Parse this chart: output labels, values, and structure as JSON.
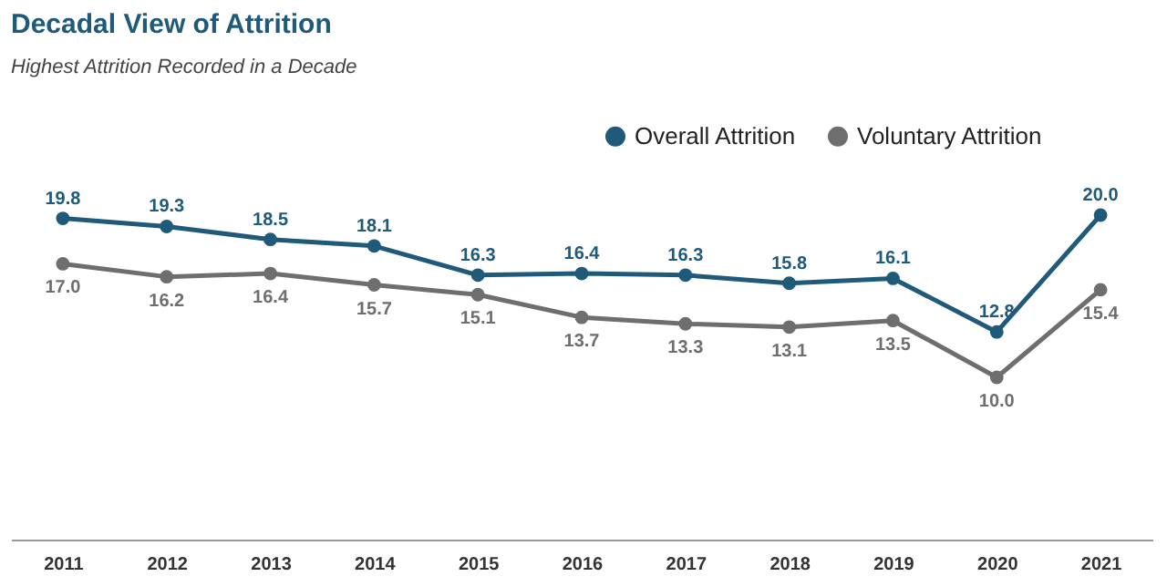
{
  "chart_data": {
    "type": "line",
    "title": "Decadal View of Attrition",
    "subtitle": "Highest Attrition Recorded in a Decade",
    "categories": [
      "2011",
      "2012",
      "2013",
      "2014",
      "2015",
      "2016",
      "2017",
      "2018",
      "2019",
      "2020",
      "2021"
    ],
    "series": [
      {
        "name": "Overall Attrition",
        "color": "#1f5a7a",
        "values": [
          19.8,
          19.3,
          18.5,
          18.1,
          16.3,
          16.4,
          16.3,
          15.8,
          16.1,
          12.8,
          20.0
        ],
        "value_labels": [
          "19.8",
          "19.3",
          "18.5",
          "18.1",
          "16.3",
          "16.4",
          "16.3",
          "15.8",
          "16.1",
          "12.8",
          "20.0"
        ]
      },
      {
        "name": "Voluntary Attrition",
        "color": "#6e6e6e",
        "values": [
          17.0,
          16.2,
          16.4,
          15.7,
          15.1,
          13.7,
          13.3,
          13.1,
          13.5,
          10.0,
          15.4
        ],
        "value_labels": [
          "17.0",
          "16.2",
          "16.4",
          "15.7",
          "15.1",
          "13.7",
          "13.3",
          "13.1",
          "13.5",
          "10.0",
          "15.4"
        ]
      }
    ],
    "legend": "top right",
    "marker": "circle",
    "line_style": "solid",
    "grid": false
  }
}
